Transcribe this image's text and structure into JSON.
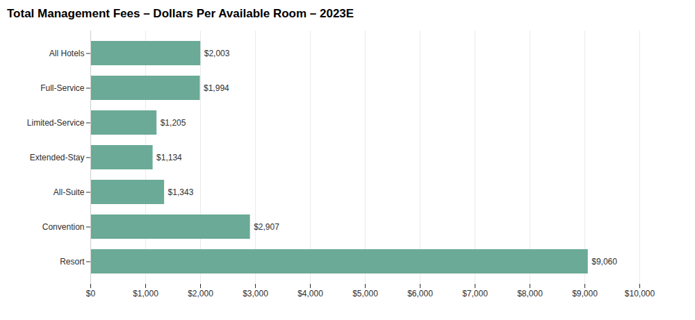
{
  "chart_data": {
    "type": "bar",
    "orientation": "horizontal",
    "title": "Total Management Fees – Dollars Per Available Room – 2023E",
    "categories": [
      "All Hotels",
      "Full-Service",
      "Limited-Service",
      "Extended-Stay",
      "All-Suite",
      "Convention",
      "Resort"
    ],
    "values": [
      2003,
      1994,
      1205,
      1134,
      1343,
      2907,
      9060
    ],
    "value_labels": [
      "$2,003",
      "$1,994",
      "$1,205",
      "$1,134",
      "$1,343",
      "$2,907",
      "$9,060"
    ],
    "data_labels": true,
    "color": "#6aaa96",
    "xlim": [
      0,
      10000
    ],
    "xticks": [
      {
        "value": 0,
        "label": "$0"
      },
      {
        "value": 1000,
        "label": "$1,000"
      },
      {
        "value": 2000,
        "label": "$2,000"
      },
      {
        "value": 3000,
        "label": "$3,000"
      },
      {
        "value": 4000,
        "label": "$4,000"
      },
      {
        "value": 5000,
        "label": "$5,000"
      },
      {
        "value": 6000,
        "label": "$6,000"
      },
      {
        "value": 7000,
        "label": "$7,000"
      },
      {
        "value": 8000,
        "label": "$8,000"
      },
      {
        "value": 9000,
        "label": "$9,000"
      },
      {
        "value": 10000,
        "label": "$10,000"
      }
    ],
    "grid": true
  }
}
